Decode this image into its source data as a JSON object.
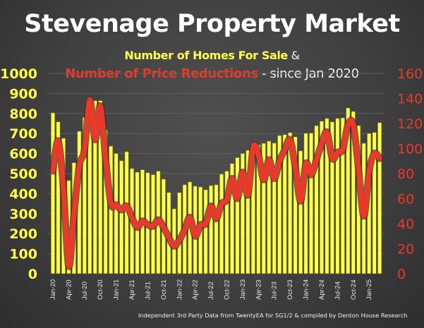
{
  "title": "Stevenage Property Market",
  "subtitle": {
    "line1_part1": "Number of Homes For Sale",
    "line1_part2": " &",
    "line2_part1": "Number of Price Reductions",
    "line2_part2": " - since Jan 2020"
  },
  "footer": "Independent 3rd Party Data from TwentyEA for SG1/2 & compiled by Denton House Research",
  "colors": {
    "homes_for_sale": "#ffff4d",
    "price_reductions": "#e8392a",
    "background": "#404040"
  },
  "chart_data": {
    "type": "bar+line",
    "title": "Stevenage Property Market",
    "subtitle": "Number of Homes For Sale & Number of Price Reductions - since Jan 2020",
    "x": [
      "Jan-20",
      "Feb-20",
      "Mar-20",
      "Apr-20",
      "May-20",
      "Jun-20",
      "Jul-20",
      "Aug-20",
      "Sep-20",
      "Oct-20",
      "Nov-20",
      "Dec-20",
      "Jan-21",
      "Feb-21",
      "Mar-21",
      "Apr-21",
      "May-21",
      "Jun-21",
      "Jul-21",
      "Aug-21",
      "Sep-21",
      "Oct-21",
      "Nov-21",
      "Dec-21",
      "Jan-22",
      "Feb-22",
      "Mar-22",
      "Apr-22",
      "May-22",
      "Jun-22",
      "Jul-22",
      "Aug-22",
      "Sep-22",
      "Oct-22",
      "Nov-22",
      "Dec-22",
      "Jan-23",
      "Feb-23",
      "Mar-23",
      "Apr-23",
      "May-23",
      "Jun-23",
      "Jul-23",
      "Aug-23",
      "Sep-23",
      "Oct-23",
      "Nov-23",
      "Dec-23",
      "Jan-24",
      "Feb-24",
      "Mar-24",
      "Apr-24",
      "May-24",
      "Jun-24",
      "Jul-24",
      "Aug-24",
      "Sep-24",
      "Oct-24",
      "Nov-24",
      "Dec-24",
      "Jan-25",
      "Feb-25",
      "Mar-25"
    ],
    "x_tick_labels": [
      "Jan-20",
      "Apr-20",
      "Jul-20",
      "Oct-20",
      "Jan-21",
      "Apr-21",
      "Jul-21",
      "Oct-21",
      "Jan-22",
      "Apr-22",
      "Jul-22",
      "Oct-22",
      "Jan-23",
      "Apr-23",
      "Jul-23",
      "Oct-23",
      "Jan-24",
      "Apr-24",
      "Jul-24",
      "Oct-24",
      "Jan-25"
    ],
    "series": [
      {
        "name": "Number of Homes For Sale",
        "type": "bar",
        "axis": "left",
        "color": "#ffff4d",
        "values": [
          803,
          758,
          676,
          465,
          554,
          711,
          780,
          870,
          864,
          864,
          718,
          637,
          600,
          564,
          609,
          525,
          507,
          519,
          504,
          494,
          512,
          472,
          405,
          324,
          405,
          444,
          458,
          437,
          433,
          419,
          440,
          444,
          497,
          512,
          550,
          580,
          600,
          616,
          652,
          644,
          651,
          662,
          652,
          690,
          694,
          704,
          683,
          613,
          701,
          702,
          739,
          761,
          775,
          758,
          775,
          778,
          827,
          810,
          739,
          651,
          700,
          705,
          754
        ]
      },
      {
        "name": "Number of Price Reductions",
        "type": "line",
        "axis": "right",
        "color": "#e8392a",
        "values": [
          82,
          106,
          68,
          6,
          47,
          86,
          99,
          139,
          107,
          134,
          92,
          56,
          55,
          51,
          54,
          45,
          37,
          42,
          39,
          38,
          43,
          37,
          29,
          22,
          27,
          35,
          45,
          30,
          39,
          40,
          54,
          44,
          56,
          59,
          76,
          60,
          81,
          63,
          101,
          95,
          75,
          91,
          76,
          90,
          99,
          107,
          85,
          58,
          88,
          79,
          91,
          104,
          113,
          92,
          97,
          99,
          119,
          119,
          83,
          46,
          82,
          96,
          92
        ]
      }
    ],
    "y_left": {
      "label": "Homes For Sale",
      "ticks": [
        0,
        100,
        200,
        300,
        400,
        500,
        600,
        700,
        800,
        900,
        1000
      ],
      "range": [
        0,
        1000
      ]
    },
    "y_right": {
      "label": "Price Reductions",
      "ticks": [
        0,
        20,
        40,
        60,
        80,
        100,
        120,
        140,
        160
      ],
      "range": [
        0,
        160
      ]
    },
    "grid": true,
    "legend": "none (described in subtitle)"
  }
}
